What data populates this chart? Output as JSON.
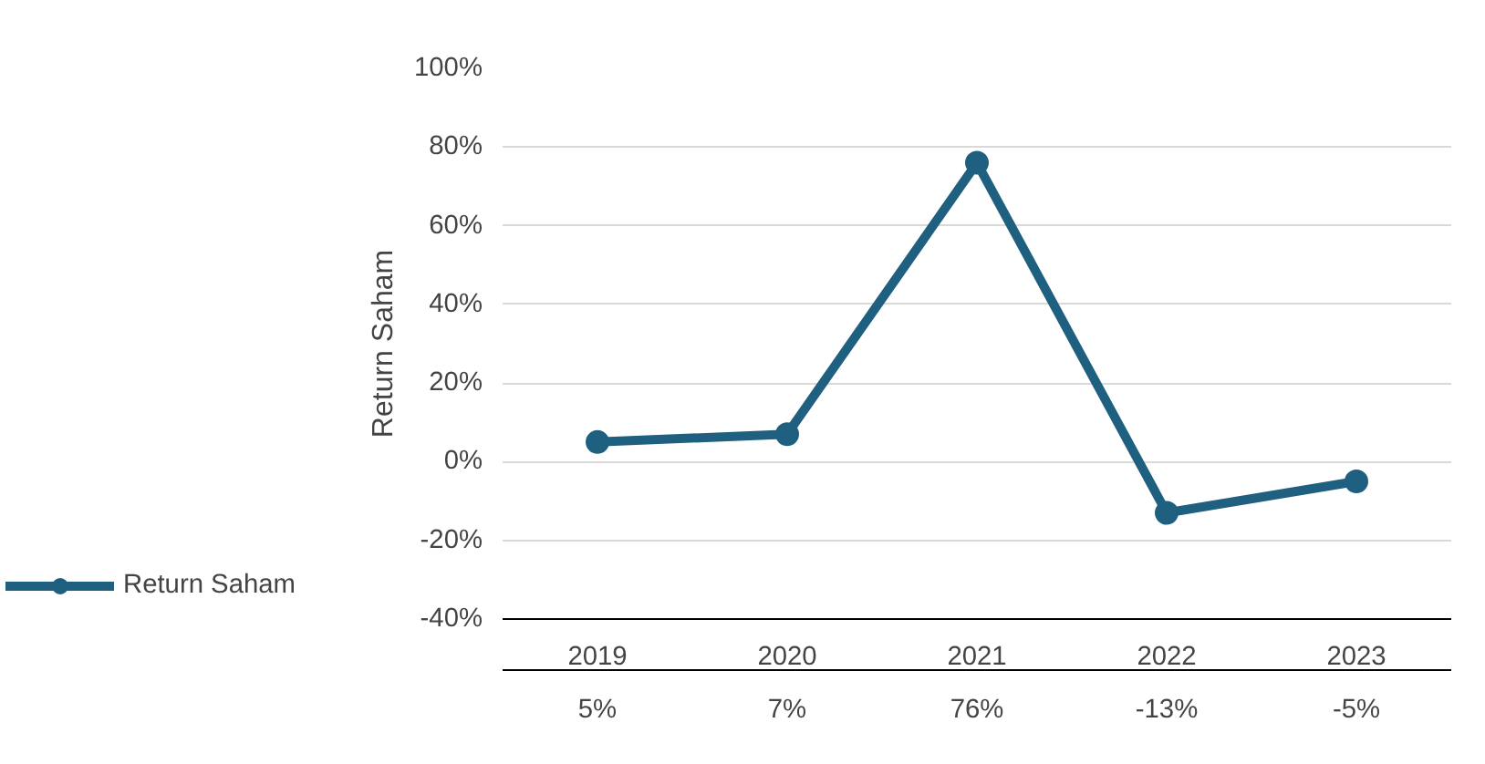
{
  "chart_data": {
    "type": "line",
    "ylabel": "Return Saham",
    "categories": [
      "2019",
      "2020",
      "2021",
      "2022",
      "2023"
    ],
    "series": [
      {
        "name": "Return Saham",
        "color": "#1f5f7f",
        "values": [
          5,
          7,
          76,
          -13,
          -5
        ],
        "value_labels": [
          "5%",
          "7%",
          "76%",
          "-13%",
          "-5%"
        ]
      }
    ],
    "ylim": [
      -40,
      100
    ],
    "yticks": [
      {
        "value": -40,
        "label": "-40%"
      },
      {
        "value": -20,
        "label": "-20%"
      },
      {
        "value": 0,
        "label": "0%"
      },
      {
        "value": 20,
        "label": "20%"
      },
      {
        "value": 40,
        "label": "40%"
      },
      {
        "value": 60,
        "label": "60%"
      },
      {
        "value": 80,
        "label": "80%"
      },
      {
        "value": 100,
        "label": "100%"
      }
    ],
    "grid": "y",
    "marker": "circle",
    "line_style": "solid",
    "legend": "bottom left"
  }
}
